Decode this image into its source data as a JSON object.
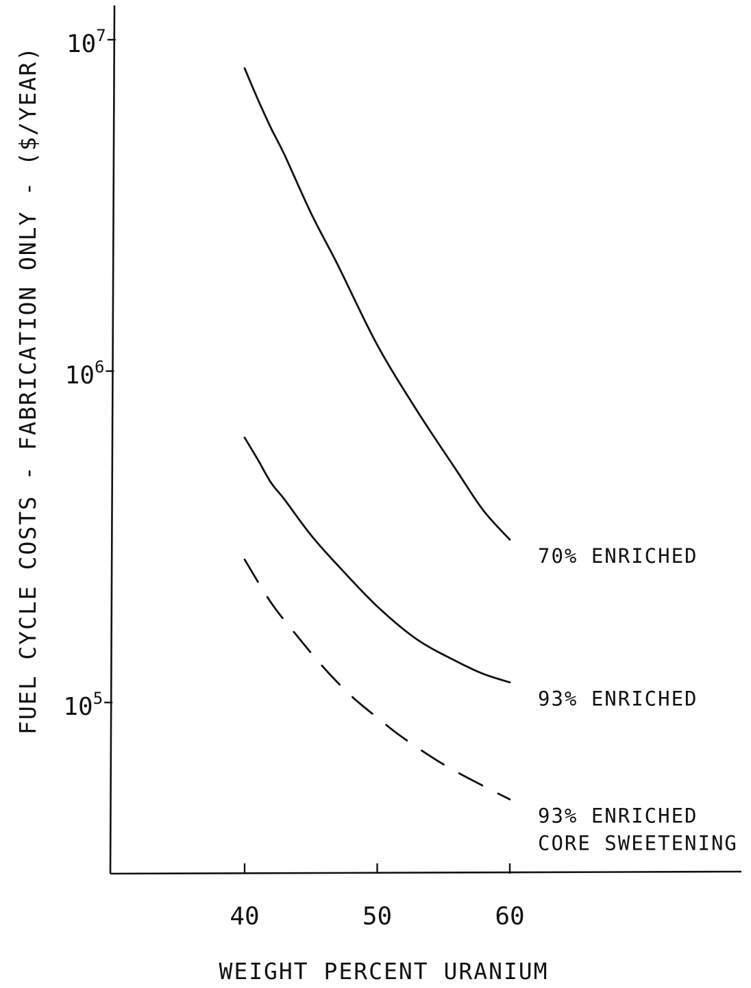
{
  "chart_data": {
    "type": "line",
    "xlabel": "WEIGHT PERCENT URANIUM",
    "ylabel": "FUEL CYCLE COSTS - FABRICATION ONLY - ($/YEAR)",
    "x_ticks": [
      {
        "value": 40,
        "label": "40"
      },
      {
        "value": 50,
        "label": "50"
      },
      {
        "value": 60,
        "label": "60"
      }
    ],
    "y_scale": "log",
    "y_ticks": [
      {
        "value": 100000,
        "base": "10",
        "exp": "5"
      },
      {
        "value": 1000000,
        "base": "10",
        "exp": "6"
      },
      {
        "value": 10000000,
        "base": "10",
        "exp": "7"
      }
    ],
    "series": [
      {
        "name": "70% ENRICHED",
        "style": "solid",
        "x": [
          40,
          41,
          42,
          43,
          45,
          47,
          50,
          53,
          56,
          58,
          60
        ],
        "y": [
          8200000,
          6600000,
          5400000,
          4500000,
          3000000,
          2100000,
          1200000,
          760000,
          500000,
          380000,
          310000
        ]
      },
      {
        "name": "93% ENRICHED",
        "style": "solid",
        "x": [
          40,
          41,
          42,
          43,
          45,
          47,
          50,
          53,
          56,
          58,
          60
        ],
        "y": [
          630000,
          540000,
          460000,
          410000,
          320000,
          260000,
          195000,
          155000,
          133000,
          122000,
          115000
        ]
      },
      {
        "name": "93% ENRICHED CORE SWEETENING",
        "style": "dashed",
        "x": [
          40,
          42,
          44,
          46,
          48,
          50,
          52,
          55,
          58,
          60
        ],
        "y": [
          270000,
          200000,
          158000,
          127000,
          105000,
          90000,
          78000,
          65000,
          56000,
          51000
        ]
      }
    ],
    "series_labels": [
      {
        "lines": [
          "70% ENRICHED"
        ]
      },
      {
        "lines": [
          "93% ENRICHED"
        ]
      },
      {
        "lines": [
          "93% ENRICHED",
          "CORE SWEETENING"
        ]
      }
    ],
    "grid": false,
    "legend": "inline-right"
  }
}
